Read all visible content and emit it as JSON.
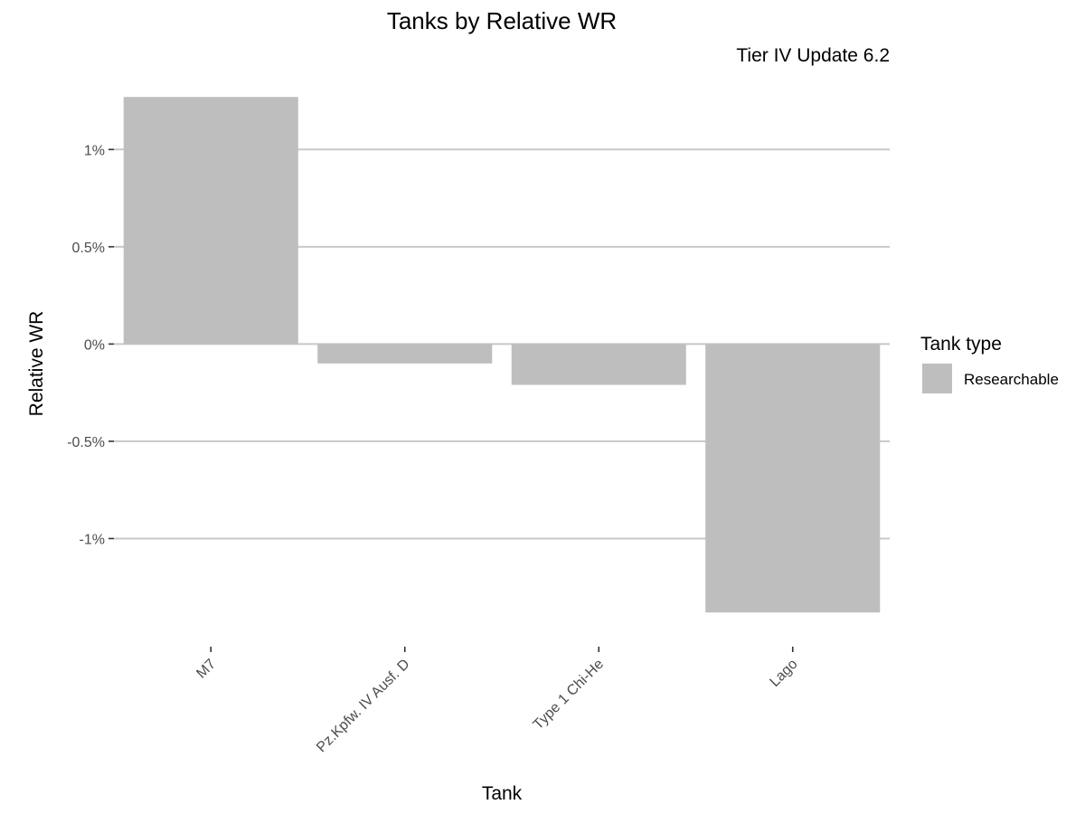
{
  "chart_data": {
    "type": "bar",
    "title": "Tanks by Relative WR",
    "subtitle": "Tier IV Update 6.2",
    "xlabel": "Tank",
    "ylabel": "Relative WR",
    "categories": [
      "M7",
      "Pz.Kpfw. IV Ausf. D",
      "Type 1 Chi-He",
      "Lago"
    ],
    "series": [
      {
        "values": [
          1.27,
          -0.1,
          -0.21,
          -1.38
        ]
      }
    ],
    "ylim": [
      -1.5,
      1.35
    ],
    "yticks": [
      1,
      0.5,
      0,
      -0.5,
      -1
    ],
    "ytick_labels": [
      "1%",
      "0.5%",
      "0%",
      "-0.5%",
      "-1%"
    ],
    "grid": true,
    "legend": {
      "title": "Tank type",
      "placement": "right",
      "entries": [
        {
          "label": "Researchable",
          "color": "#bebebe"
        }
      ]
    },
    "bar_color": "#bebebe"
  }
}
